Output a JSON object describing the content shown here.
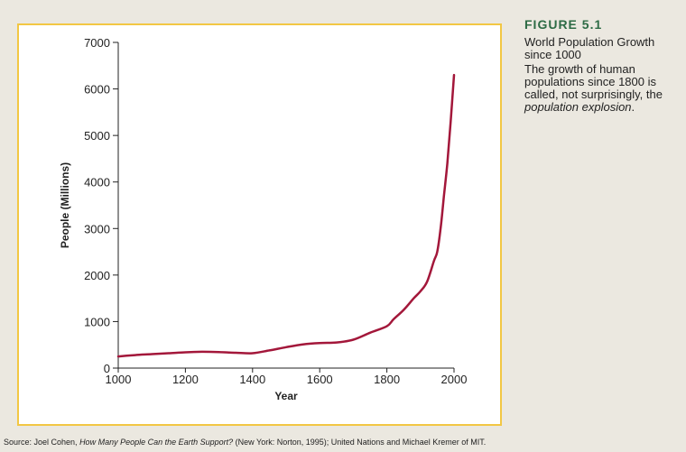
{
  "figure": {
    "label": "FIGURE 5.1",
    "title": "World Population Growth since 1000",
    "description_pre": "The growth of human populations since 1800 is called, not surprisingly, the ",
    "description_em": "population explosion",
    "description_post": "."
  },
  "source": {
    "pre": "Source: Joel Cohen, ",
    "em": "How Many People Can the Earth Support?",
    "post": " (New York: Norton, 1995); United Nations and Michael Kremer of MIT."
  },
  "colors": {
    "line": "#a3173a",
    "frame": "#f2c744",
    "heading": "#2d6b45"
  },
  "chart_data": {
    "type": "line",
    "xlabel": "Year",
    "ylabel": "People (Millions)",
    "xlim": [
      1000,
      2000
    ],
    "ylim": [
      0,
      7000
    ],
    "xticks": [
      1000,
      1200,
      1400,
      1600,
      1800,
      2000
    ],
    "yticks": [
      0,
      1000,
      2000,
      3000,
      4000,
      5000,
      6000,
      7000
    ],
    "grid": false,
    "series": [
      {
        "x": [
          1000,
          1050,
          1100,
          1150,
          1200,
          1250,
          1300,
          1350,
          1400,
          1450,
          1500,
          1550,
          1600,
          1650,
          1700,
          1750,
          1800,
          1820,
          1850,
          1880,
          1900,
          1920,
          1940,
          1950,
          1960,
          1970,
          1980,
          1990,
          2000
        ],
        "y": [
          250,
          280,
          300,
          320,
          340,
          350,
          345,
          330,
          320,
          380,
          450,
          510,
          540,
          550,
          610,
          760,
          900,
          1050,
          1250,
          1500,
          1650,
          1860,
          2300,
          2500,
          3000,
          3700,
          4400,
          5300,
          6300
        ]
      }
    ]
  }
}
